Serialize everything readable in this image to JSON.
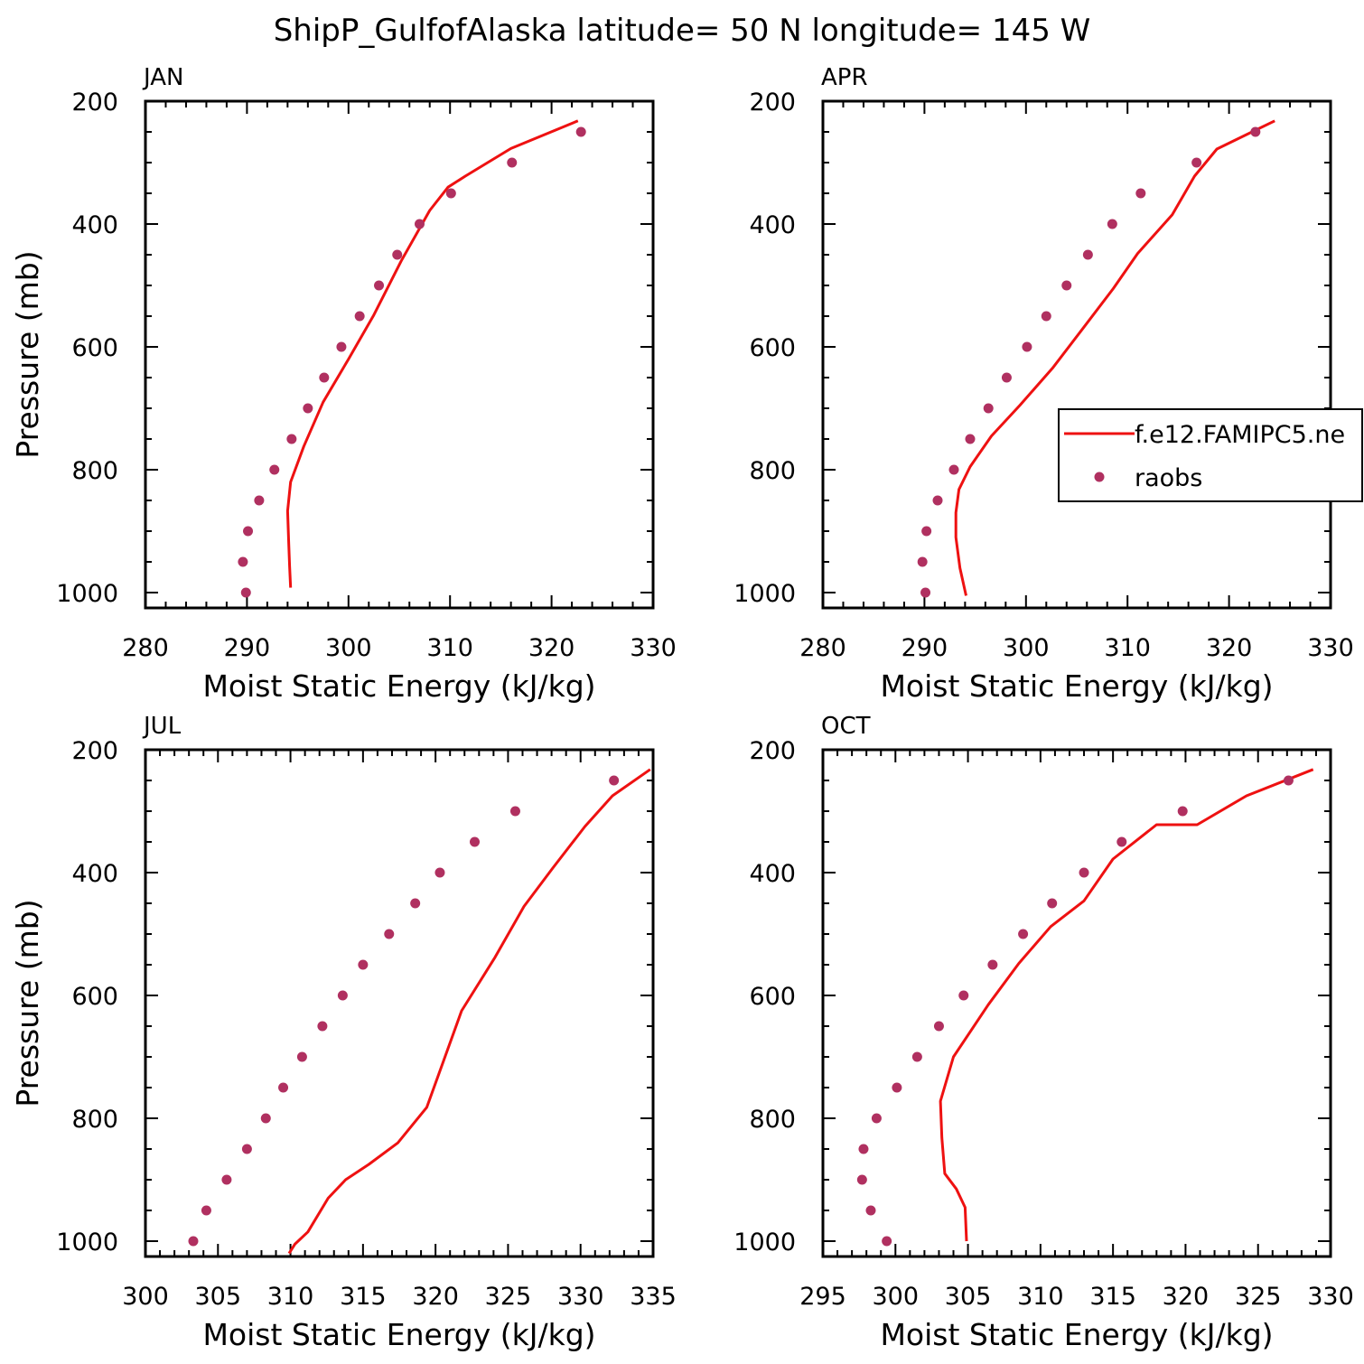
{
  "title": "ShipP_GulfofAlaska  latitude= 50 N longitude= 145 W",
  "colors": {
    "model_line": "#ee1111",
    "obs_marker": "#b03060",
    "axes": "#000000"
  },
  "legend": {
    "placement": "right-middle",
    "entries": [
      {
        "label": "f.e12.FAMIPC5.ne",
        "style": "line",
        "color": "#ee1111"
      },
      {
        "label": "raobs",
        "style": "marker",
        "color": "#b03060"
      }
    ]
  },
  "chart_data": [
    {
      "type": "line",
      "panel": "JAN",
      "xlabel": "Moist Static Energy (kJ/kg)",
      "ylabel": "Pressure (mb)",
      "xlim": [
        280,
        330
      ],
      "ylim": [
        1025,
        200
      ],
      "y_reversed": true,
      "xticks": [
        280,
        290,
        300,
        310,
        320,
        330
      ],
      "yticks": [
        200,
        400,
        600,
        800,
        1000
      ],
      "series": [
        {
          "name": "f.e12.FAMIPC5.ne",
          "style": "line",
          "x": [
            294.3,
            294.2,
            294.1,
            294.0,
            294.3,
            295.6,
            297.5,
            300.0,
            302.5,
            305.2,
            308.0,
            309.8,
            311.5,
            316.0,
            322.6
          ],
          "y": [
            992,
            957,
            914,
            867,
            820,
            762,
            690,
            620,
            548,
            460,
            378,
            340,
            322,
            277,
            232
          ]
        },
        {
          "name": "raobs",
          "style": "marker",
          "x": [
            289.9,
            289.6,
            290.1,
            291.2,
            292.7,
            294.4,
            296.0,
            297.6,
            299.3,
            301.1,
            303.0,
            304.8,
            307.0,
            310.1,
            316.1,
            322.9
          ],
          "y": [
            1000,
            950,
            900,
            850,
            800,
            750,
            700,
            650,
            600,
            550,
            500,
            450,
            400,
            350,
            300,
            250
          ]
        }
      ]
    },
    {
      "type": "line",
      "panel": "APR",
      "xlabel": "Moist Static Energy (kJ/kg)",
      "ylabel": "Pressure (mb)",
      "xlim": [
        280,
        330
      ],
      "ylim": [
        1025,
        200
      ],
      "y_reversed": true,
      "xticks": [
        280,
        290,
        300,
        310,
        320,
        330
      ],
      "yticks": [
        200,
        400,
        600,
        800,
        1000
      ],
      "series": [
        {
          "name": "f.e12.FAMIPC5.ne",
          "style": "line",
          "x": [
            294.1,
            293.5,
            293.1,
            293.1,
            293.4,
            294.5,
            296.6,
            299.4,
            302.6,
            305.7,
            308.6,
            311.0,
            314.4,
            316.6,
            318.8,
            324.5
          ],
          "y": [
            1005,
            960,
            910,
            870,
            832,
            795,
            745,
            695,
            635,
            568,
            505,
            448,
            385,
            322,
            278,
            232
          ]
        },
        {
          "name": "raobs",
          "style": "marker",
          "x": [
            290.1,
            289.8,
            290.2,
            291.3,
            292.9,
            294.5,
            296.3,
            298.1,
            300.1,
            302.0,
            304.0,
            306.1,
            308.5,
            311.3,
            316.8,
            322.6
          ],
          "y": [
            1000,
            950,
            900,
            850,
            800,
            750,
            700,
            650,
            600,
            550,
            500,
            450,
            400,
            350,
            300,
            250
          ]
        }
      ]
    },
    {
      "type": "line",
      "panel": "JUL",
      "xlabel": "Moist Static Energy (kJ/kg)",
      "ylabel": "Pressure (mb)",
      "xlim": [
        300,
        335
      ],
      "ylim": [
        1025,
        200
      ],
      "y_reversed": true,
      "xticks": [
        300,
        305,
        310,
        315,
        320,
        325,
        330,
        335
      ],
      "yticks": [
        200,
        400,
        600,
        800,
        1000
      ],
      "series": [
        {
          "name": "f.e12.FAMIPC5.ne",
          "style": "line",
          "x": [
            309.9,
            310.3,
            311.2,
            312.6,
            313.8,
            315.4,
            317.4,
            319.4,
            320.5,
            321.8,
            324.1,
            326.1,
            328.1,
            330.3,
            332.2,
            334.8
          ],
          "y": [
            1020,
            1005,
            985,
            930,
            900,
            875,
            840,
            782,
            710,
            625,
            538,
            455,
            392,
            325,
            275,
            232
          ]
        },
        {
          "name": "raobs",
          "style": "marker",
          "x": [
            303.3,
            304.2,
            305.6,
            307.0,
            308.3,
            309.5,
            310.8,
            312.2,
            313.6,
            315.0,
            316.8,
            318.6,
            320.3,
            322.7,
            325.5,
            332.3
          ],
          "y": [
            1000,
            950,
            900,
            850,
            800,
            750,
            700,
            650,
            600,
            550,
            500,
            450,
            400,
            350,
            300,
            250
          ]
        }
      ]
    },
    {
      "type": "line",
      "panel": "OCT",
      "xlabel": "Moist Static Energy (kJ/kg)",
      "ylabel": "Pressure (mb)",
      "xlim": [
        295,
        330
      ],
      "ylim": [
        1025,
        200
      ],
      "y_reversed": true,
      "xticks": [
        295,
        300,
        305,
        310,
        315,
        320,
        325,
        330
      ],
      "yticks": [
        200,
        400,
        600,
        800,
        1000
      ],
      "series": [
        {
          "name": "f.e12.FAMIPC5.ne",
          "style": "line",
          "x": [
            304.9,
            304.8,
            304.2,
            303.4,
            303.2,
            303.1,
            304.0,
            306.4,
            308.5,
            310.7,
            313.0,
            315.0,
            318.0,
            320.8,
            324.2,
            328.8
          ],
          "y": [
            1000,
            945,
            915,
            890,
            832,
            772,
            700,
            615,
            548,
            488,
            446,
            378,
            322,
            322,
            275,
            232
          ]
        },
        {
          "name": "raobs",
          "style": "marker",
          "x": [
            299.4,
            298.3,
            297.7,
            297.8,
            298.7,
            300.1,
            301.5,
            303.0,
            304.7,
            306.7,
            308.8,
            310.8,
            313.0,
            315.6,
            319.8,
            327.1
          ],
          "y": [
            1000,
            950,
            900,
            850,
            800,
            750,
            700,
            650,
            600,
            550,
            500,
            450,
            400,
            350,
            300,
            250
          ]
        }
      ]
    }
  ]
}
